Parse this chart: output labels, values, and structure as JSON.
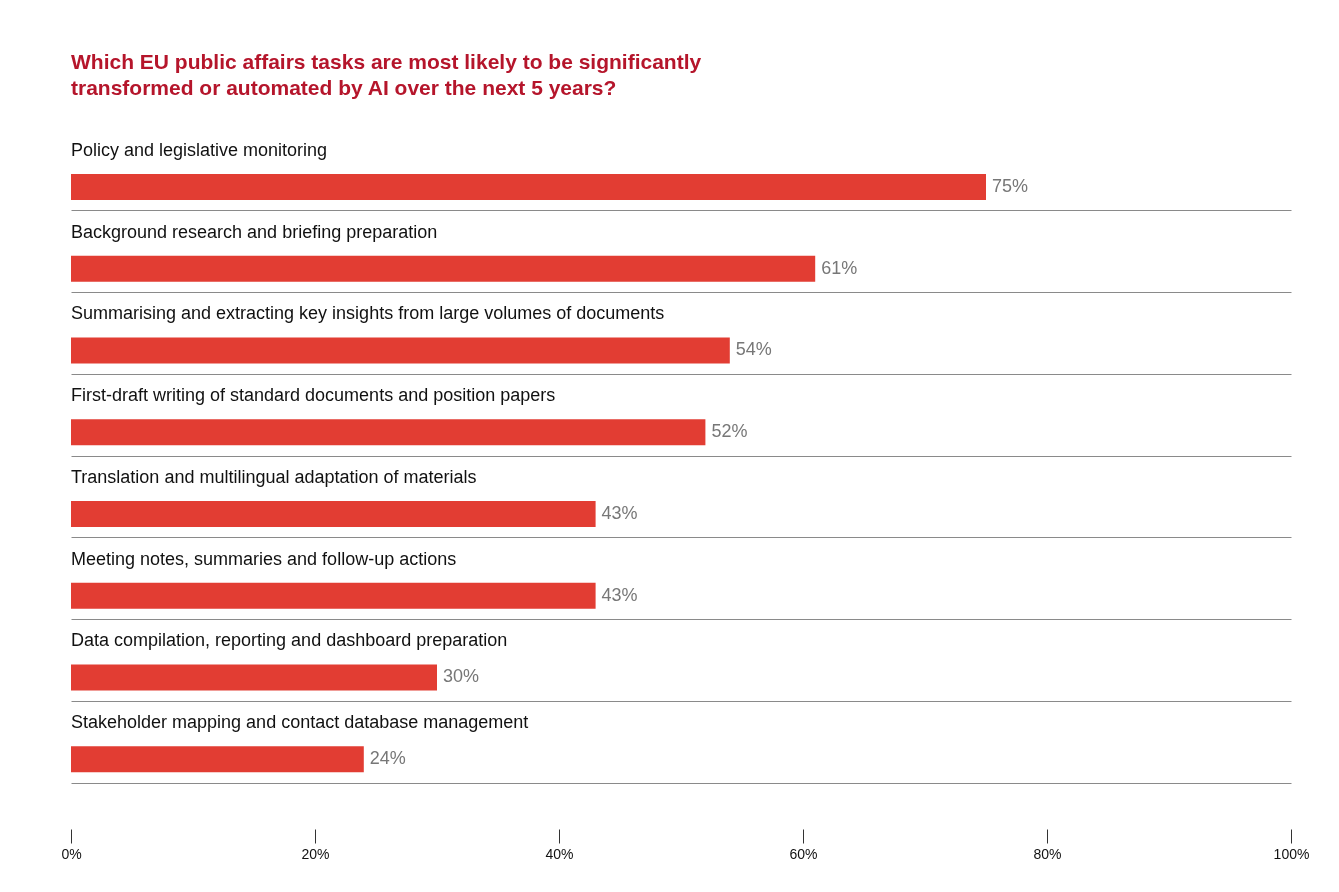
{
  "chart_data": {
    "type": "bar",
    "orientation": "horizontal",
    "title": [
      "Which EU public affairs tasks are most likely to be significantly",
      "transformed or automated by AI over the next 5 years?"
    ],
    "categories": [
      "Policy and legislative monitoring",
      "Background research and briefing preparation",
      "Summarising and extracting key insights from large volumes of documents",
      "First-draft writing of standard documents and position papers",
      "Translation and multilingual adaptation of materials",
      "Meeting notes, summaries and follow-up actions",
      "Data compilation, reporting and dashboard preparation",
      "Stakeholder mapping and contact database management"
    ],
    "values": [
      75,
      61,
      54,
      52,
      43,
      43,
      30,
      24
    ],
    "value_labels": [
      "75%",
      "61%",
      "54%",
      "52%",
      "43%",
      "43%",
      "30%",
      "24%"
    ],
    "color": "#e23d33",
    "xlim": [
      0,
      100
    ],
    "xticks": [
      {
        "value": 0,
        "label": "0%"
      },
      {
        "value": 20,
        "label": "20%"
      },
      {
        "value": 40,
        "label": "40%"
      },
      {
        "value": 60,
        "label": "60%"
      },
      {
        "value": 80,
        "label": "80%"
      },
      {
        "value": 100,
        "label": "100%"
      }
    ],
    "grid": "y"
  }
}
